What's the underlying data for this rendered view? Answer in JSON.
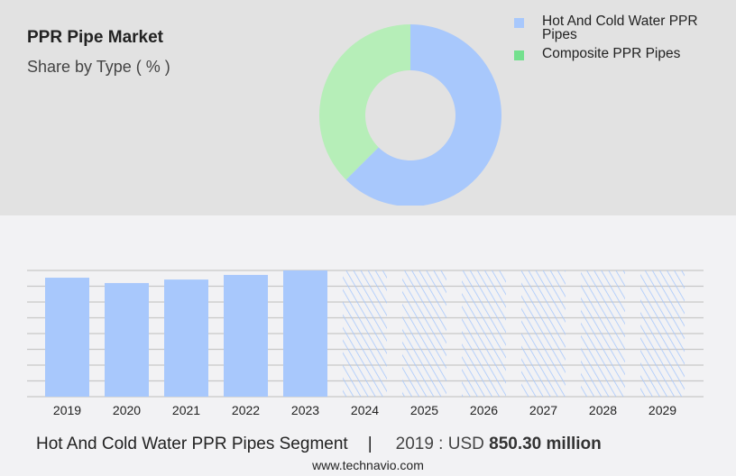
{
  "header": {
    "title": "PPR Pipe Market",
    "subtitle": "Share by Type ( % )"
  },
  "chart_data": [
    {
      "type": "pie",
      "donut": true,
      "slices": [
        {
          "name": "Hot And Cold Water PPR Pipes",
          "value": 62.5,
          "color": "#a8c8fc"
        },
        {
          "name": "Composite PPR Pipes",
          "value": 37.5,
          "color": "#b6eeb8"
        }
      ],
      "legend_colors": [
        "#a8c8fc",
        "#74e08e"
      ],
      "legend": "right"
    },
    {
      "type": "bar",
      "categories": [
        "2019",
        "2020",
        "2021",
        "2022",
        "2023",
        "2024",
        "2025",
        "2026",
        "2027",
        "2028",
        "2029"
      ],
      "values": [
        850.3,
        812,
        837,
        870,
        902,
        null,
        null,
        null,
        null,
        null,
        null
      ],
      "forecast": [
        "2024",
        "2025",
        "2026",
        "2027",
        "2028",
        "2029"
      ],
      "ylim": [
        0,
        902
      ],
      "grid": true,
      "color": "#a8c8fc"
    }
  ],
  "footer": {
    "segment": "Hot And Cold Water PPR Pipes Segment",
    "separator": "|",
    "year_label": "2019 : USD",
    "value": "850.30 million",
    "site": "www.technavio.com"
  }
}
